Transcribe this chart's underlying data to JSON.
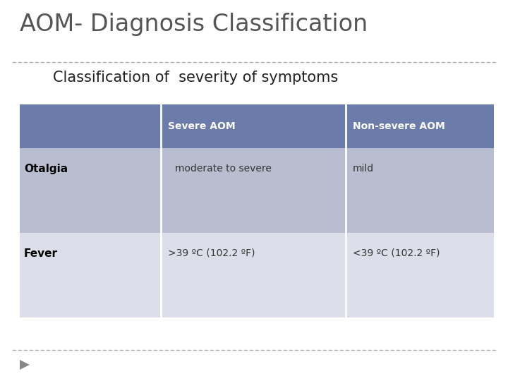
{
  "title": "AOM- Diagnosis Classification",
  "subtitle": "Classification of  severity of symptoms",
  "bg_color": "#ffffff",
  "title_color": "#555555",
  "subtitle_color": "#222222",
  "header_bg": "#6b7caa",
  "header_text_color": "#ffffff",
  "row1_bg": "#b8bdd0",
  "row2_bg": "#dcdfe9",
  "row_label_color": "#000000",
  "cell_text_color": "#333333",
  "col_headers": [
    "Severe AOM",
    "Non-severe AOM"
  ],
  "row_labels": [
    "Otalgia",
    "Fever"
  ],
  "row1_values": [
    "moderate to severe",
    "mild"
  ],
  "row2_values": [
    ">39 ºC (102.2 ºF)",
    "<39 ºC (102.2 ºF)"
  ],
  "dashed_line_color": "#aaaaaa",
  "arrow_color": "#888888",
  "title_fontsize": 24,
  "subtitle_fontsize": 15,
  "header_fontsize": 10,
  "cell_fontsize": 10,
  "label_fontsize": 11
}
